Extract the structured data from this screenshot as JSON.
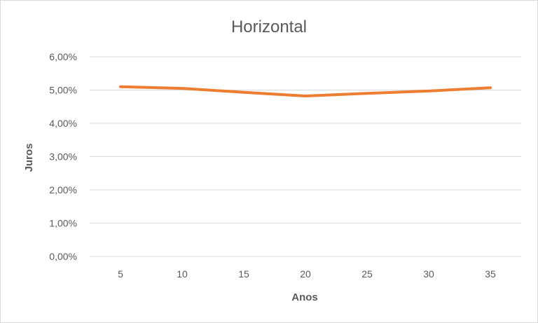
{
  "chart_data": {
    "type": "line",
    "title": "Horizontal",
    "xlabel": "Anos",
    "ylabel": "Juros",
    "categories": [
      "5",
      "10",
      "15",
      "20",
      "25",
      "30",
      "35"
    ],
    "series": [
      {
        "values": [
          5.1,
          5.05,
          4.93,
          4.82,
          4.9,
          4.97,
          5.07
        ],
        "color": "#ED7D31"
      }
    ],
    "ylim": [
      0,
      6
    ],
    "yticks": [
      "0,00%",
      "1,00%",
      "2,00%",
      "3,00%",
      "4,00%",
      "5,00%",
      "6,00%"
    ],
    "grid": "horizontal",
    "legend": "none"
  }
}
